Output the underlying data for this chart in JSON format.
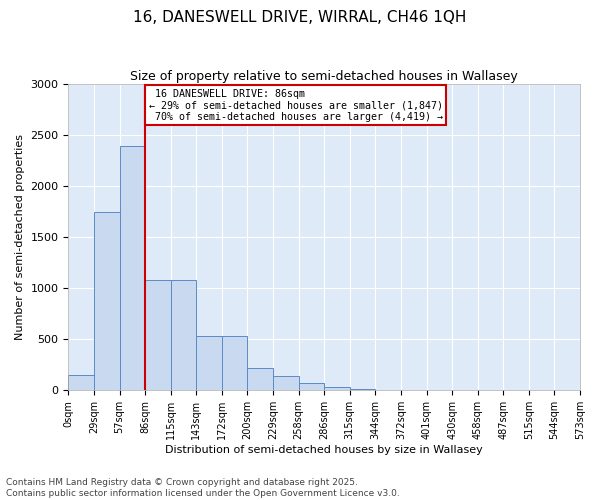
{
  "title1": "16, DANESWELL DRIVE, WIRRAL, CH46 1QH",
  "title2": "Size of property relative to semi-detached houses in Wallasey",
  "xlabel": "Distribution of semi-detached houses by size in Wallasey",
  "ylabel": "Number of semi-detached properties",
  "footnote": "Contains HM Land Registry data © Crown copyright and database right 2025.\nContains public sector information licensed under the Open Government Licence v3.0.",
  "bin_labels": [
    "0sqm",
    "29sqm",
    "57sqm",
    "86sqm",
    "115sqm",
    "143sqm",
    "172sqm",
    "200sqm",
    "229sqm",
    "258sqm",
    "286sqm",
    "315sqm",
    "344sqm",
    "372sqm",
    "401sqm",
    "430sqm",
    "458sqm",
    "487sqm",
    "515sqm",
    "544sqm",
    "573sqm"
  ],
  "bar_values": [
    155,
    1750,
    2390,
    1080,
    1080,
    535,
    535,
    220,
    145,
    75,
    30,
    15,
    0,
    0,
    0,
    0,
    0,
    0,
    0,
    0
  ],
  "bar_color": "#c9d9f0",
  "bar_edge_color": "#5b8ac5",
  "property_bin_index": 3,
  "property_line_label": "16 DANESWELL DRIVE: 86sqm",
  "smaller_pct": "29%",
  "smaller_count": "1,847",
  "larger_pct": "70%",
  "larger_count": "4,419",
  "red_color": "#cc0000",
  "ylim": [
    0,
    3000
  ],
  "yticks": [
    0,
    500,
    1000,
    1500,
    2000,
    2500,
    3000
  ],
  "background_color": "#deeaf7",
  "grid_color": "#ffffff",
  "title1_fontsize": 11,
  "title2_fontsize": 9,
  "ylabel_fontsize": 8,
  "xlabel_fontsize": 8,
  "tick_fontsize": 7,
  "footnote_fontsize": 6.5
}
